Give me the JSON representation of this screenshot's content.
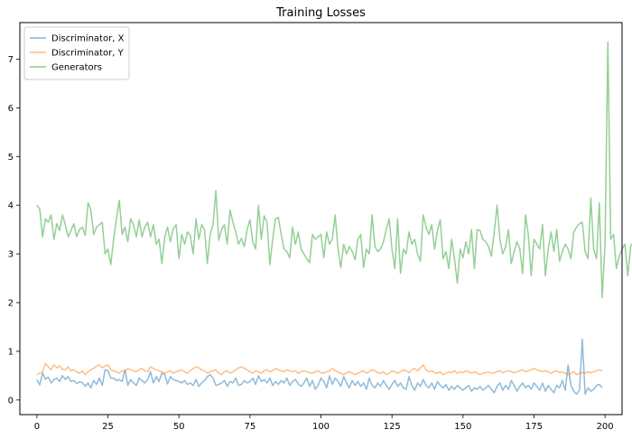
{
  "chart_data": {
    "type": "line",
    "title": "Training Losses",
    "xlabel": "",
    "ylabel": "",
    "xlim": [
      -6,
      206
    ],
    "ylim": [
      -0.3,
      7.75
    ],
    "xticks": [
      0,
      25,
      50,
      75,
      100,
      125,
      150,
      175,
      200
    ],
    "yticks": [
      0,
      1,
      2,
      3,
      4,
      5,
      6,
      7
    ],
    "legend_position": "top-left",
    "grid": false,
    "series": [
      {
        "name": "Discriminator, X",
        "color": "#1f77b4",
        "values": [
          0.42,
          0.31,
          0.55,
          0.43,
          0.47,
          0.35,
          0.42,
          0.45,
          0.38,
          0.5,
          0.42,
          0.48,
          0.38,
          0.4,
          0.34,
          0.37,
          0.36,
          0.28,
          0.35,
          0.25,
          0.4,
          0.32,
          0.45,
          0.3,
          0.62,
          0.6,
          0.45,
          0.45,
          0.4,
          0.42,
          0.38,
          0.62,
          0.3,
          0.42,
          0.35,
          0.3,
          0.45,
          0.4,
          0.35,
          0.42,
          0.58,
          0.35,
          0.48,
          0.38,
          0.55,
          0.52,
          0.33,
          0.48,
          0.42,
          0.4,
          0.38,
          0.35,
          0.4,
          0.32,
          0.35,
          0.3,
          0.42,
          0.28,
          0.35,
          0.4,
          0.48,
          0.52,
          0.45,
          0.3,
          0.32,
          0.35,
          0.4,
          0.28,
          0.38,
          0.35,
          0.45,
          0.3,
          0.32,
          0.4,
          0.35,
          0.38,
          0.45,
          0.32,
          0.5,
          0.38,
          0.42,
          0.35,
          0.45,
          0.3,
          0.38,
          0.32,
          0.4,
          0.35,
          0.45,
          0.3,
          0.38,
          0.42,
          0.33,
          0.28,
          0.35,
          0.45,
          0.28,
          0.4,
          0.22,
          0.3,
          0.45,
          0.38,
          0.25,
          0.5,
          0.32,
          0.45,
          0.38,
          0.28,
          0.48,
          0.35,
          0.25,
          0.4,
          0.3,
          0.38,
          0.28,
          0.35,
          0.22,
          0.45,
          0.3,
          0.25,
          0.35,
          0.28,
          0.4,
          0.3,
          0.22,
          0.32,
          0.4,
          0.28,
          0.35,
          0.25,
          0.22,
          0.48,
          0.3,
          0.2,
          0.35,
          0.28,
          0.42,
          0.3,
          0.25,
          0.35,
          0.22,
          0.38,
          0.3,
          0.25,
          0.32,
          0.2,
          0.28,
          0.22,
          0.3,
          0.25,
          0.2,
          0.25,
          0.3,
          0.18,
          0.25,
          0.22,
          0.28,
          0.2,
          0.25,
          0.3,
          0.22,
          0.15,
          0.28,
          0.35,
          0.2,
          0.3,
          0.22,
          0.4,
          0.3,
          0.18,
          0.28,
          0.35,
          0.25,
          0.3,
          0.22,
          0.35,
          0.28,
          0.2,
          0.35,
          0.18,
          0.3,
          0.22,
          0.15,
          0.3,
          0.25,
          0.4,
          0.2,
          0.72,
          0.3,
          0.18,
          0.12,
          0.2,
          1.25,
          0.12,
          0.25,
          0.18,
          0.22,
          0.3,
          0.32,
          0.25
        ]
      },
      {
        "name": "Discriminator, Y",
        "color": "#ff7f0e",
        "values": [
          0.52,
          0.55,
          0.58,
          0.75,
          0.68,
          0.62,
          0.72,
          0.66,
          0.7,
          0.63,
          0.62,
          0.68,
          0.6,
          0.62,
          0.58,
          0.55,
          0.6,
          0.52,
          0.58,
          0.62,
          0.65,
          0.7,
          0.72,
          0.66,
          0.7,
          0.72,
          0.62,
          0.6,
          0.58,
          0.55,
          0.6,
          0.58,
          0.65,
          0.62,
          0.6,
          0.58,
          0.62,
          0.65,
          0.6,
          0.58,
          0.68,
          0.65,
          0.62,
          0.6,
          0.58,
          0.55,
          0.58,
          0.6,
          0.55,
          0.58,
          0.6,
          0.62,
          0.58,
          0.55,
          0.6,
          0.65,
          0.68,
          0.66,
          0.62,
          0.6,
          0.55,
          0.58,
          0.6,
          0.62,
          0.55,
          0.52,
          0.58,
          0.6,
          0.55,
          0.58,
          0.62,
          0.66,
          0.68,
          0.65,
          0.62,
          0.58,
          0.55,
          0.6,
          0.58,
          0.55,
          0.6,
          0.62,
          0.58,
          0.6,
          0.65,
          0.62,
          0.6,
          0.58,
          0.62,
          0.6,
          0.58,
          0.6,
          0.55,
          0.58,
          0.6,
          0.58,
          0.56,
          0.55,
          0.58,
          0.6,
          0.56,
          0.55,
          0.58,
          0.6,
          0.65,
          0.6,
          0.58,
          0.55,
          0.52,
          0.56,
          0.58,
          0.55,
          0.52,
          0.55,
          0.58,
          0.6,
          0.55,
          0.58,
          0.62,
          0.6,
          0.56,
          0.55,
          0.58,
          0.52,
          0.55,
          0.6,
          0.58,
          0.55,
          0.58,
          0.62,
          0.6,
          0.56,
          0.62,
          0.65,
          0.6,
          0.66,
          0.72,
          0.62,
          0.58,
          0.6,
          0.56,
          0.55,
          0.58,
          0.52,
          0.55,
          0.58,
          0.56,
          0.6,
          0.55,
          0.58,
          0.56,
          0.6,
          0.58,
          0.55,
          0.58,
          0.55,
          0.52,
          0.55,
          0.56,
          0.58,
          0.55,
          0.56,
          0.58,
          0.6,
          0.56,
          0.58,
          0.6,
          0.58,
          0.56,
          0.58,
          0.6,
          0.62,
          0.58,
          0.6,
          0.62,
          0.65,
          0.62,
          0.6,
          0.58,
          0.6,
          0.58,
          0.55,
          0.58,
          0.6,
          0.56,
          0.58,
          0.55,
          0.52,
          0.55,
          0.58,
          0.52,
          0.55,
          0.56,
          0.55,
          0.58,
          0.56,
          0.58,
          0.6,
          0.62,
          0.6
        ]
      },
      {
        "name": "Generators",
        "color": "#2ca02c",
        "values": [
          4.0,
          3.92,
          3.35,
          3.72,
          3.65,
          3.8,
          3.3,
          3.62,
          3.48,
          3.8,
          3.6,
          3.35,
          3.48,
          3.62,
          3.35,
          3.5,
          3.55,
          3.38,
          4.05,
          3.9,
          3.4,
          3.55,
          3.6,
          3.65,
          3.0,
          3.1,
          2.78,
          3.3,
          3.72,
          4.1,
          3.4,
          3.55,
          3.25,
          3.72,
          3.6,
          3.35,
          3.7,
          3.35,
          3.55,
          3.65,
          3.35,
          3.6,
          3.2,
          3.3,
          2.8,
          3.35,
          3.55,
          3.25,
          3.52,
          3.6,
          2.9,
          3.4,
          3.2,
          3.45,
          3.38,
          3.0,
          3.72,
          3.3,
          3.6,
          3.5,
          2.8,
          3.4,
          3.6,
          4.3,
          3.28,
          3.5,
          3.6,
          3.2,
          3.9,
          3.65,
          3.45,
          3.2,
          3.32,
          3.15,
          3.5,
          3.7,
          3.25,
          3.1,
          4.0,
          3.3,
          3.78,
          3.65,
          2.78,
          3.3,
          3.72,
          3.75,
          3.4,
          3.1,
          3.05,
          2.92,
          3.55,
          3.2,
          3.45,
          3.1,
          3.0,
          2.9,
          2.82,
          3.4,
          3.3,
          3.35,
          3.4,
          2.92,
          3.45,
          3.2,
          3.3,
          3.8,
          3.1,
          2.72,
          3.2,
          3.0,
          3.15,
          3.05,
          2.88,
          3.3,
          3.4,
          2.72,
          3.1,
          3.0,
          3.8,
          3.15,
          3.05,
          3.1,
          3.25,
          3.5,
          3.72,
          3.1,
          2.7,
          3.72,
          2.6,
          3.1,
          3.0,
          3.45,
          3.2,
          3.3,
          3.0,
          2.85,
          3.8,
          3.55,
          3.4,
          3.6,
          3.1,
          3.48,
          3.7,
          2.9,
          3.05,
          2.7,
          3.3,
          2.9,
          2.4,
          3.1,
          2.92,
          3.25,
          3.0,
          3.5,
          2.7,
          3.5,
          3.48,
          3.3,
          3.25,
          3.15,
          2.95,
          3.45,
          4.0,
          3.3,
          3.0,
          3.15,
          3.5,
          2.8,
          3.05,
          3.25,
          3.1,
          2.6,
          3.8,
          3.4,
          2.55,
          3.3,
          3.2,
          3.1,
          3.6,
          2.55,
          3.1,
          3.45,
          3.05,
          3.5,
          2.85,
          3.05,
          3.2,
          3.1,
          2.9,
          3.45,
          3.55,
          3.62,
          3.65,
          3.05,
          2.9,
          4.15,
          3.1,
          2.9,
          4.05,
          2.1,
          3.2,
          7.35,
          3.3,
          3.4,
          2.7,
          2.95,
          3.1,
          3.2,
          2.55,
          3.15,
          3.25,
          3.25,
          3.5
        ]
      }
    ]
  }
}
